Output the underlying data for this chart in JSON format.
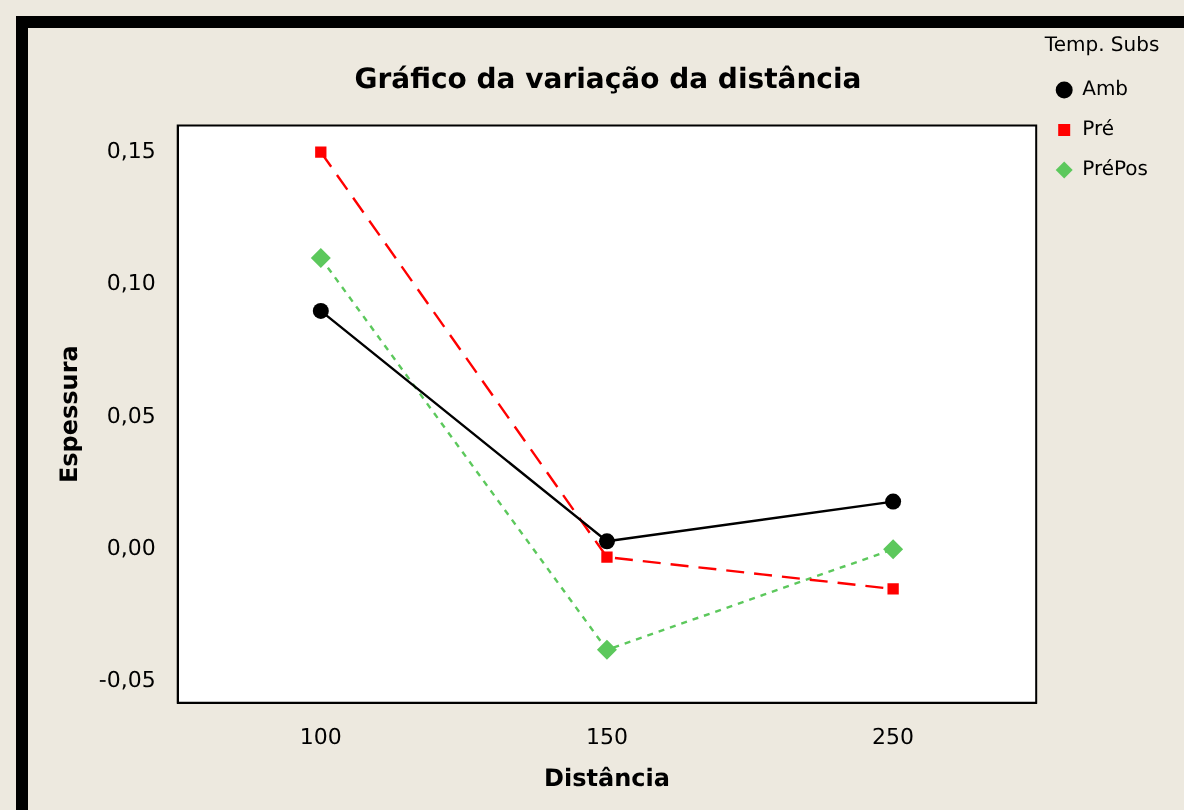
{
  "chart_data": {
    "type": "line",
    "title": "Gráfico da variação da distância",
    "xlabel": "Distância",
    "ylabel": "Espessura",
    "legend_title": "Temp. Subs",
    "categories": [
      "100",
      "150",
      "250"
    ],
    "series": [
      {
        "name": "Amb",
        "color": "#000000",
        "values": [
          0.09,
          0.003,
          0.018
        ],
        "marker": "circle",
        "line_style": "solid"
      },
      {
        "name": "Pré",
        "color": "#ff0000",
        "values": [
          0.15,
          -0.003,
          -0.015
        ],
        "marker": "square",
        "line_style": "dashed"
      },
      {
        "name": "PréPos",
        "color": "#5cc85c",
        "values": [
          0.11,
          -0.038,
          0.0
        ],
        "marker": "diamond",
        "line_style": "dotted"
      }
    ],
    "ylim": [
      -0.058,
      0.16
    ],
    "yticks": [
      {
        "value": -0.05,
        "label": "-0,05"
      },
      {
        "value": 0,
        "label": "0,00"
      },
      {
        "value": 0.05,
        "label": "0,05"
      },
      {
        "value": 0.1,
        "label": "0,10"
      },
      {
        "value": 0.15,
        "label": "0,15"
      }
    ],
    "grid": false,
    "legend": "right"
  }
}
